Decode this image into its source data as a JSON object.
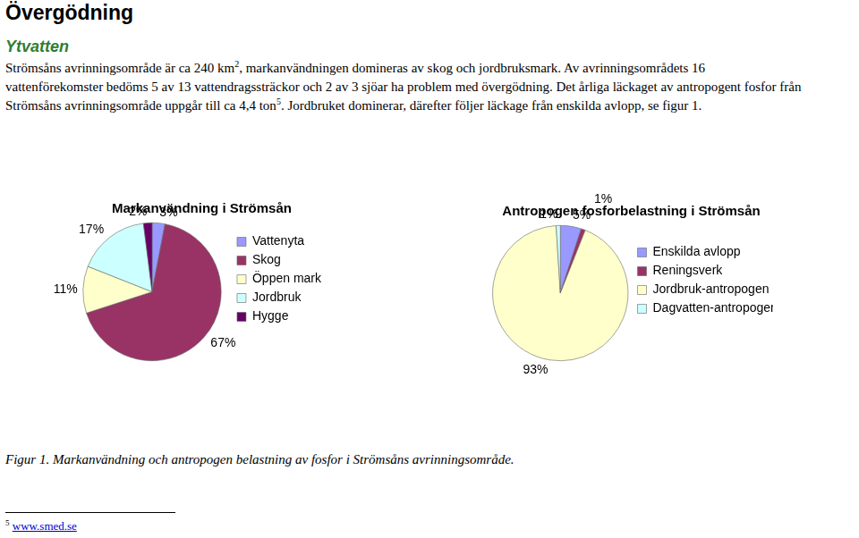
{
  "heading": "Övergödning",
  "subheading": "Ytvatten",
  "paragraph": [
    [
      {
        "text": "Strömsåns avrinningsområde är ca 240 km"
      },
      {
        "sup": "2"
      },
      {
        "text": ", markanvändningen domineras av skog och jordbruksmark. Av avrinningsområdets 16"
      }
    ],
    [
      {
        "text": "vattenförekomster bedöms 5 av 13 vattendragssträckor och 2 av 3 sjöar ha problem med övergödning. Det årliga läckaget av antropogent fosfor från"
      }
    ],
    [
      {
        "text": "Strömsåns avrinningsområde uppgår till ca 4,4 ton"
      },
      {
        "sup": "5"
      },
      {
        "text": ". Jordbruket dominerar, därefter följer läckage från enskilda avlopp, se figur 1."
      }
    ]
  ],
  "chart_data": [
    {
      "type": "pie",
      "title": "Markanvändning i Strömsån",
      "categories": [
        "Vattenyta",
        "Skog",
        "Öppen mark",
        "Jordbruk",
        "Hygge"
      ],
      "values": [
        3,
        67,
        11,
        17,
        2
      ],
      "value_labels": [
        "3%",
        "67%",
        "11%",
        "17%",
        "2%"
      ],
      "colors": [
        "#9999ff",
        "#993366",
        "#ffffcc",
        "#ccffff",
        "#660066"
      ],
      "data_labels": true,
      "legend": "right"
    },
    {
      "type": "pie",
      "title": "Antropogen fosforbelastning i Strömsån",
      "categories": [
        "Enskilda avlopp",
        "Reningsverk",
        "Jordbruk-antropogen",
        "Dagvatten-antropogen"
      ],
      "values": [
        5,
        1,
        93,
        1
      ],
      "value_labels": [
        "5%",
        "1%",
        "93%",
        "1%"
      ],
      "colors": [
        "#9999ff",
        "#993366",
        "#ffffcc",
        "#ccffff"
      ],
      "data_labels": true,
      "legend": "right"
    }
  ],
  "caption": "Figur 1. Markanvändning och antropogen belastning av fosfor i Strömsåns avrinningsområde.",
  "footnote": {
    "mark": "5",
    "text": "www.smed.se"
  }
}
